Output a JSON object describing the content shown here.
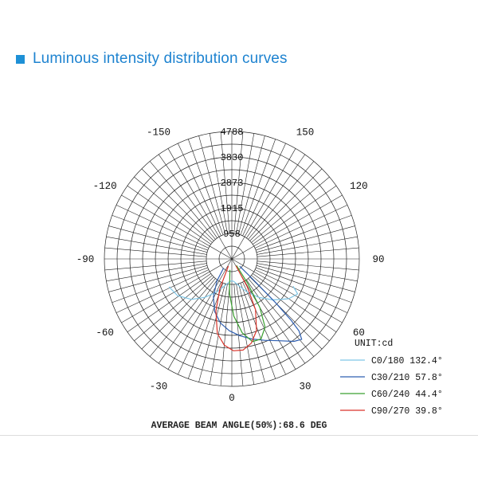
{
  "header": {
    "title": "Luminous intensity distribution curves"
  },
  "footer": {
    "text": "AVERAGE BEAM ANGLE(50%):68.6 DEG"
  },
  "chart_data": {
    "type": "polar",
    "unit_label": "UNIT:cd",
    "radial_max": 4788,
    "radial_ticks": [
      4788,
      3830,
      2873,
      1915,
      958
    ],
    "angle_labels": [
      {
        "text": "-150",
        "angle": -150
      },
      {
        "text": "150",
        "angle": 150
      },
      {
        "text": "-120",
        "angle": -120
      },
      {
        "text": "120",
        "angle": 120
      },
      {
        "text": "-90",
        "angle": -90
      },
      {
        "text": "90",
        "angle": 90
      },
      {
        "text": "-60",
        "angle": -60
      },
      {
        "text": "60",
        "angle": 60
      },
      {
        "text": "-30",
        "angle": -30
      },
      {
        "text": "30",
        "angle": 30
      },
      {
        "text": "0",
        "angle": 0
      }
    ],
    "series": [
      {
        "name": "C0/180 132.4°",
        "color": "#7fc6e6",
        "points": [
          [
            -66,
            2580
          ],
          [
            -56,
            2460
          ],
          [
            -45,
            2150
          ],
          [
            -35,
            1760
          ],
          [
            -25,
            1380
          ],
          [
            -15,
            1050
          ],
          [
            -5,
            850
          ],
          [
            0,
            820
          ],
          [
            5,
            850
          ],
          [
            15,
            1050
          ],
          [
            25,
            1380
          ],
          [
            35,
            1760
          ],
          [
            45,
            2180
          ],
          [
            55,
            2610
          ],
          [
            62,
            2800
          ],
          [
            66,
            2520
          ]
        ]
      },
      {
        "name": "C30/210 57.8°",
        "color": "#2f5fb0",
        "points": [
          [
            -42,
            460
          ],
          [
            -34,
            1000
          ],
          [
            -26,
            1580
          ],
          [
            -18,
            2080
          ],
          [
            -10,
            2450
          ],
          [
            -2,
            2700
          ],
          [
            6,
            2900
          ],
          [
            14,
            3100
          ],
          [
            22,
            3300
          ],
          [
            30,
            3550
          ],
          [
            37,
            3880
          ],
          [
            41,
            4000
          ],
          [
            43,
            3700
          ],
          [
            44,
            3200
          ],
          [
            45,
            2300
          ],
          [
            46,
            1100
          ],
          [
            47,
            400
          ]
        ]
      },
      {
        "name": "C60/240 44.4°",
        "color": "#3aa030",
        "points": [
          [
            -10,
            420
          ],
          [
            -4,
            1300
          ],
          [
            2,
            2150
          ],
          [
            8,
            2800
          ],
          [
            14,
            3200
          ],
          [
            20,
            3200
          ],
          [
            26,
            2850
          ],
          [
            30,
            2100
          ],
          [
            33,
            1100
          ],
          [
            35,
            300
          ]
        ]
      },
      {
        "name": "C90/270 39.8°",
        "color": "#d9332a",
        "points": [
          [
            -26,
            300
          ],
          [
            -22,
            1200
          ],
          [
            -17,
            2050
          ],
          [
            -11,
            2850
          ],
          [
            -5,
            3250
          ],
          [
            1,
            3450
          ],
          [
            7,
            3450
          ],
          [
            13,
            3250
          ],
          [
            19,
            2850
          ],
          [
            25,
            2100
          ],
          [
            29,
            1200
          ],
          [
            31,
            300
          ]
        ]
      }
    ]
  }
}
